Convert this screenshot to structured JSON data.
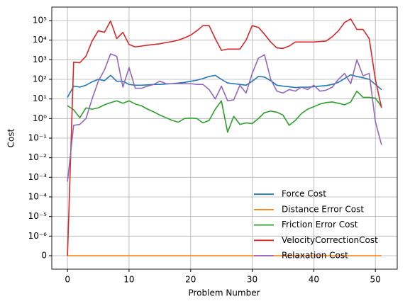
{
  "chart_data": {
    "type": "line",
    "xlabel": "Problem Number",
    "ylabel": "Cost",
    "x": [
      0,
      1,
      2,
      3,
      4,
      5,
      6,
      7,
      8,
      9,
      10,
      11,
      12,
      13,
      14,
      15,
      16,
      17,
      18,
      19,
      20,
      21,
      22,
      23,
      24,
      25,
      26,
      27,
      28,
      29,
      30,
      31,
      32,
      33,
      34,
      35,
      36,
      37,
      38,
      39,
      40,
      41,
      42,
      43,
      44,
      45,
      46,
      47,
      48,
      49,
      50,
      51
    ],
    "series": [
      {
        "name": "Force Cost",
        "color": "#1f77b4",
        "values": [
          12,
          45,
          40,
          50,
          75,
          100,
          85,
          160,
          80,
          80,
          55,
          50,
          50,
          52,
          55,
          55,
          58,
          60,
          65,
          70,
          80,
          90,
          110,
          140,
          160,
          100,
          65,
          60,
          55,
          50,
          80,
          140,
          130,
          85,
          50,
          45,
          42,
          38,
          40,
          40,
          42,
          45,
          48,
          55,
          70,
          110,
          170,
          140,
          120,
          100,
          55,
          30
        ]
      },
      {
        "name": "Distance Error Cost",
        "color": "#ff7f0e",
        "values": [
          0,
          0,
          0,
          0,
          0,
          0,
          0,
          0,
          0,
          0,
          0,
          0,
          0,
          0,
          0,
          0,
          0,
          0,
          0,
          0,
          0,
          0,
          0,
          0,
          0,
          0,
          0,
          0,
          0,
          0,
          0,
          0,
          0,
          0,
          0,
          0,
          0,
          0,
          0,
          0,
          0,
          0,
          0,
          0,
          0,
          0,
          0,
          0,
          0,
          0,
          0,
          0
        ]
      },
      {
        "name": "Friction Error Cost",
        "color": "#2ca02c",
        "values": [
          4.5,
          2.8,
          1.1,
          3.5,
          3,
          3.5,
          5,
          6.5,
          8,
          6,
          8,
          5.5,
          4.5,
          3,
          2.2,
          1.5,
          1.1,
          0.8,
          0.65,
          1.0,
          1.05,
          1.0,
          0.6,
          0.8,
          3,
          8,
          0.2,
          1.3,
          0.5,
          0.6,
          0.55,
          1.0,
          2,
          2.4,
          2.1,
          1.5,
          0.45,
          0.8,
          1.8,
          3,
          4,
          5.5,
          6.5,
          7,
          6,
          5,
          7,
          25,
          12,
          12,
          11,
          4
        ]
      },
      {
        "name": "VelocityCorrectionCost",
        "color": "#d62728",
        "values": [
          0,
          750,
          700,
          1500,
          9000,
          30000,
          25000,
          95000,
          12000,
          25000,
          6000,
          4500,
          5000,
          5500,
          6000,
          6500,
          7500,
          8500,
          10000,
          13000,
          18000,
          30000,
          55000,
          55000,
          12000,
          3000,
          3500,
          3500,
          3500,
          10000,
          55000,
          45000,
          20000,
          8000,
          4000,
          3800,
          5000,
          8000,
          8000,
          8000,
          8000,
          8500,
          9000,
          15000,
          30000,
          80000,
          120000,
          35000,
          35000,
          12000,
          100,
          3.5
        ]
      },
      {
        "name": "Relaxation Cost",
        "color": "#9467bd",
        "values": [
          0.0006,
          0.45,
          0.5,
          1.0,
          10,
          80,
          300,
          2000,
          1500,
          40,
          400,
          35,
          35,
          45,
          55,
          80,
          60,
          60,
          60,
          60,
          60,
          55,
          55,
          30,
          10,
          45,
          8,
          9,
          50,
          20,
          200,
          1200,
          1800,
          100,
          25,
          20,
          30,
          25,
          40,
          30,
          50,
          25,
          28,
          40,
          100,
          200,
          60,
          1000,
          150,
          200,
          0.7,
          0.045
        ]
      }
    ],
    "xlim": [
      -2.55,
      53.55
    ],
    "xticks": [
      0,
      10,
      20,
      30,
      40,
      50
    ],
    "yscale": "symlog",
    "linthresh": 1e-06,
    "ylim": [
      -6.87e-07,
      486000
    ],
    "yticks": [
      0,
      {
        "value": 1e-06,
        "label": "10⁻⁶"
      },
      {
        "value": 1e-05,
        "label": "10⁻⁵"
      },
      {
        "value": 0.0001,
        "label": "10⁻⁴"
      },
      {
        "value": 0.001,
        "label": "10⁻³"
      },
      {
        "value": 0.01,
        "label": "10⁻²"
      },
      {
        "value": 0.1,
        "label": "10⁻¹"
      },
      {
        "value": 1,
        "label": "10⁰"
      },
      {
        "value": 10,
        "label": "10¹"
      },
      {
        "value": 100,
        "label": "10²"
      },
      {
        "value": 1000,
        "label": "10³"
      },
      {
        "value": 10000,
        "label": "10⁴"
      },
      {
        "value": 100000,
        "label": "10⁵"
      }
    ],
    "grid": true,
    "legend": "lower right"
  }
}
